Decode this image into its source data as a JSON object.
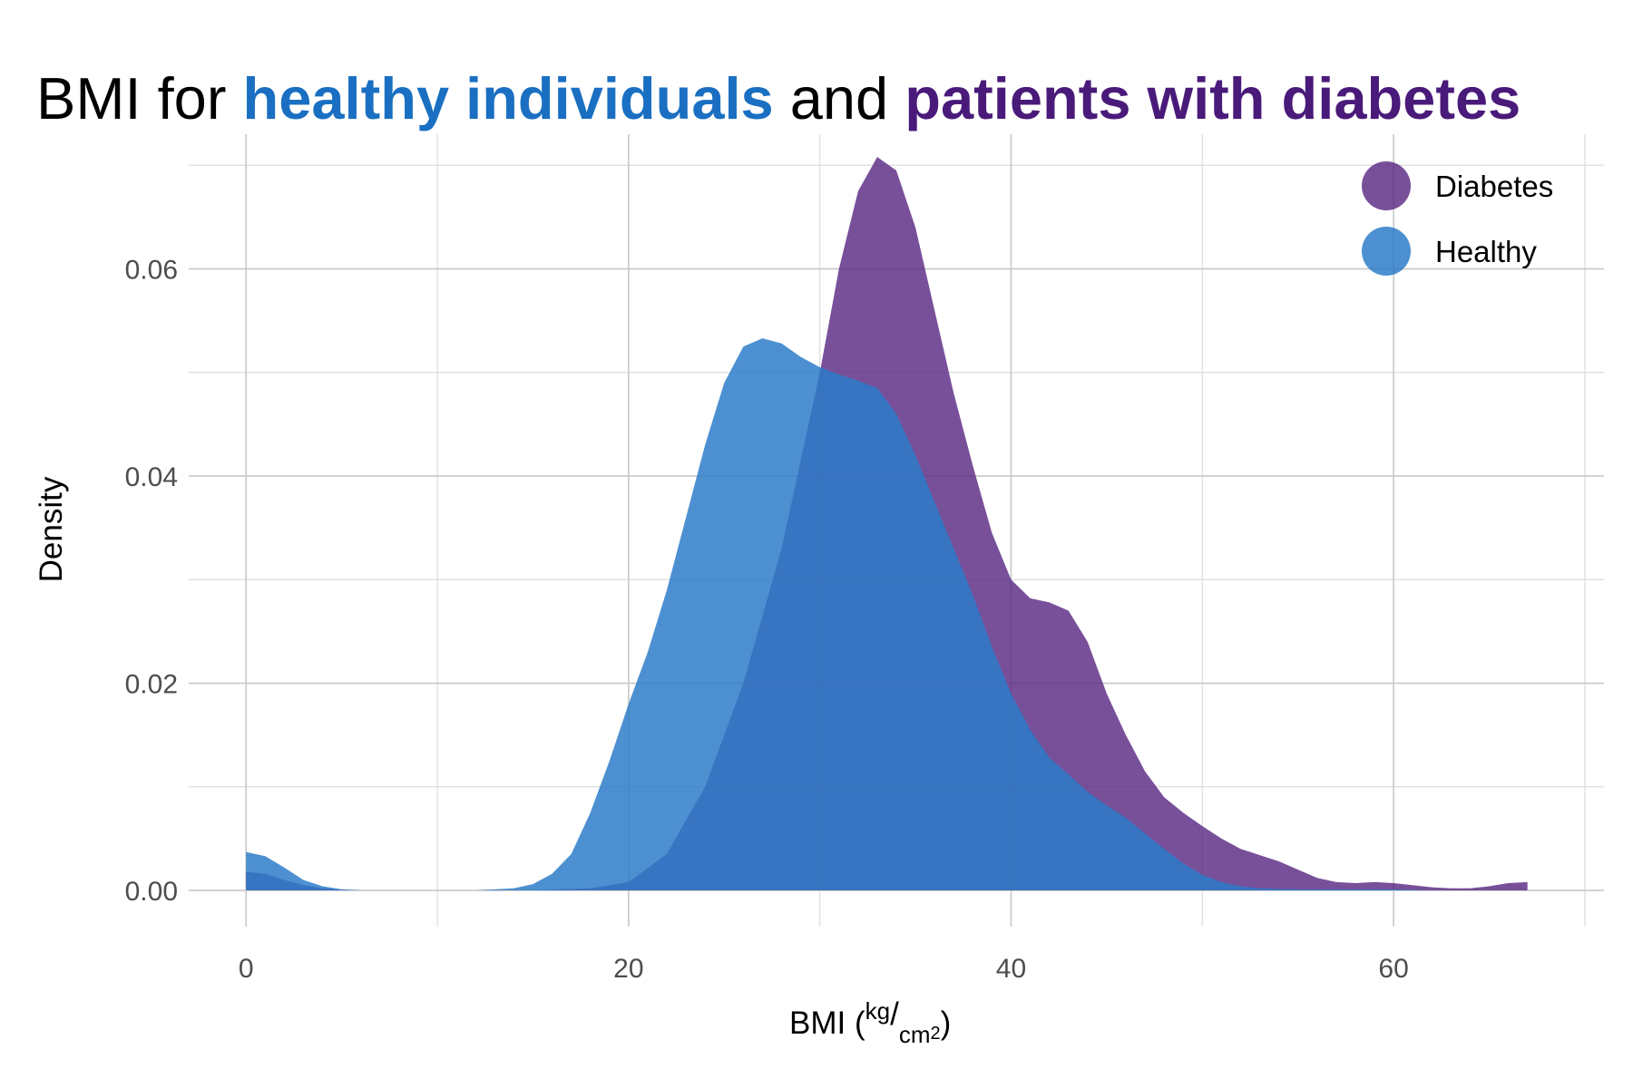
{
  "chart_data": {
    "type": "area",
    "title_parts": [
      {
        "text": "BMI for ",
        "color": "#000000",
        "bold": false
      },
      {
        "text": "healthy individuals",
        "color": "#1a6fc2",
        "bold": true
      },
      {
        "text": " and ",
        "color": "#000000",
        "bold": false
      },
      {
        "text": "patients with diabetes",
        "color": "#4a1a7a",
        "bold": true
      }
    ],
    "xlabel": {
      "main": "BMI (",
      "sup": "kg",
      "slash": "/",
      "sub": "cm",
      "sub2": "2",
      "close": ")"
    },
    "ylabel": "Density",
    "xlim": [
      -3,
      71
    ],
    "ylim": [
      -0.0035,
      0.073
    ],
    "x_ticks": [
      0,
      20,
      40,
      60
    ],
    "x_tick_labels": [
      "0",
      "20",
      "40",
      "60"
    ],
    "y_ticks": [
      0,
      0.02,
      0.04,
      0.06
    ],
    "y_tick_labels": [
      "0.00",
      "0.02",
      "0.04",
      "0.06"
    ],
    "x_minor": [
      10,
      30,
      50,
      70
    ],
    "y_minor": [
      0.01,
      0.03,
      0.05,
      0.07
    ],
    "grid": true,
    "legend_position": "top-right",
    "series": [
      {
        "name": "Diabetes",
        "color": "#5a2a84",
        "opacity": 0.82,
        "points": [
          [
            0,
            0.0018
          ],
          [
            1,
            0.0016
          ],
          [
            2,
            0.001
          ],
          [
            3,
            0.0005
          ],
          [
            4,
            0.0002
          ],
          [
            5,
            5e-05
          ],
          [
            6,
            0
          ],
          [
            15,
            0
          ],
          [
            18,
            0.0002
          ],
          [
            20,
            0.0008
          ],
          [
            22,
            0.0035
          ],
          [
            24,
            0.01
          ],
          [
            26,
            0.02
          ],
          [
            28,
            0.033
          ],
          [
            30,
            0.05
          ],
          [
            31,
            0.06
          ],
          [
            32,
            0.0675
          ],
          [
            33,
            0.0708
          ],
          [
            34,
            0.0695
          ],
          [
            35,
            0.064
          ],
          [
            36,
            0.056
          ],
          [
            37,
            0.048
          ],
          [
            38,
            0.041
          ],
          [
            39,
            0.0345
          ],
          [
            40,
            0.03
          ],
          [
            41,
            0.0282
          ],
          [
            42,
            0.0278
          ],
          [
            43,
            0.027
          ],
          [
            44,
            0.024
          ],
          [
            45,
            0.019
          ],
          [
            46,
            0.015
          ],
          [
            47,
            0.0115
          ],
          [
            48,
            0.009
          ],
          [
            49,
            0.0075
          ],
          [
            50,
            0.0062
          ],
          [
            51,
            0.005
          ],
          [
            52,
            0.004
          ],
          [
            53,
            0.0034
          ],
          [
            54,
            0.0028
          ],
          [
            55,
            0.002
          ],
          [
            56,
            0.0012
          ],
          [
            57,
            0.0008
          ],
          [
            58,
            0.0007
          ],
          [
            59,
            0.0008
          ],
          [
            60,
            0.0007
          ],
          [
            62,
            0.0003
          ],
          [
            63,
            0.0002
          ],
          [
            64,
            0.0002
          ],
          [
            65,
            0.0004
          ],
          [
            66,
            0.0007
          ],
          [
            67,
            0.0008
          ]
        ]
      },
      {
        "name": "Healthy",
        "color": "#2b7bc8",
        "opacity": 0.84,
        "points": [
          [
            0,
            0.0037
          ],
          [
            1,
            0.0033
          ],
          [
            2,
            0.0022
          ],
          [
            3,
            0.001
          ],
          [
            4,
            0.0004
          ],
          [
            5,
            0.0001
          ],
          [
            6,
            0
          ],
          [
            12,
            0
          ],
          [
            14,
            0.0002
          ],
          [
            15,
            0.0006
          ],
          [
            16,
            0.0016
          ],
          [
            17,
            0.0035
          ],
          [
            18,
            0.0075
          ],
          [
            19,
            0.0125
          ],
          [
            20,
            0.018
          ],
          [
            21,
            0.023
          ],
          [
            22,
            0.029
          ],
          [
            23,
            0.036
          ],
          [
            24,
            0.043
          ],
          [
            25,
            0.049
          ],
          [
            26,
            0.0525
          ],
          [
            27,
            0.0533
          ],
          [
            28,
            0.0528
          ],
          [
            29,
            0.0515
          ],
          [
            30,
            0.0505
          ],
          [
            31,
            0.0498
          ],
          [
            32,
            0.0492
          ],
          [
            33,
            0.0485
          ],
          [
            34,
            0.046
          ],
          [
            35,
            0.042
          ],
          [
            36,
            0.0375
          ],
          [
            37,
            0.033
          ],
          [
            38,
            0.0285
          ],
          [
            39,
            0.0235
          ],
          [
            40,
            0.019
          ],
          [
            41,
            0.0155
          ],
          [
            42,
            0.0128
          ],
          [
            43,
            0.0112
          ],
          [
            44,
            0.0095
          ],
          [
            45,
            0.0082
          ],
          [
            46,
            0.007
          ],
          [
            47,
            0.0055
          ],
          [
            48,
            0.004
          ],
          [
            49,
            0.0026
          ],
          [
            50,
            0.0015
          ],
          [
            51,
            0.0008
          ],
          [
            52,
            0.0004
          ],
          [
            53,
            0.0002
          ],
          [
            55,
            0.0001
          ],
          [
            58,
            0.0001
          ],
          [
            60,
            0.0001
          ],
          [
            62,
            0
          ]
        ]
      }
    ]
  }
}
